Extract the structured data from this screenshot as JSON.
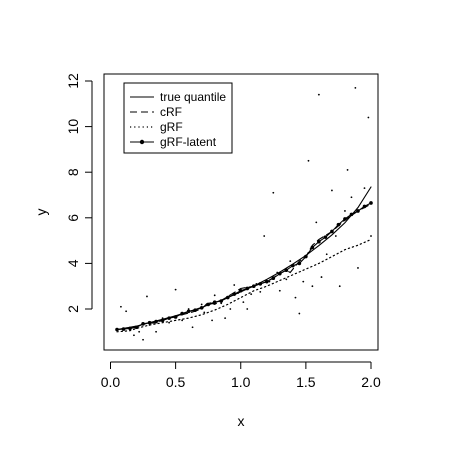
{
  "chart_data": {
    "type": "line",
    "title": "",
    "xlabel": "x",
    "ylabel": "y",
    "xlim": [
      0,
      2
    ],
    "ylim": [
      1,
      12
    ],
    "xticks": [
      "0.0",
      "0.5",
      "1.0",
      "1.5",
      "2.0"
    ],
    "yticks": [
      "2",
      "4",
      "6",
      "8",
      "10",
      "12"
    ],
    "grid": false,
    "legend_position": "top-left",
    "legend": [
      "true quantile",
      "cRF",
      "gRF",
      "gRF-latent"
    ],
    "series": [
      {
        "name": "true quantile",
        "line": "solid",
        "x": [
          0.05,
          0.1,
          0.2,
          0.3,
          0.4,
          0.5,
          0.6,
          0.7,
          0.8,
          0.9,
          1.0,
          1.1,
          1.2,
          1.3,
          1.4,
          1.5,
          1.6,
          1.7,
          1.8,
          1.9,
          2.0
        ],
        "values": [
          1.1,
          1.15,
          1.25,
          1.4,
          1.55,
          1.7,
          1.88,
          2.07,
          2.28,
          2.5,
          2.75,
          3.01,
          3.3,
          3.62,
          3.97,
          4.35,
          4.78,
          5.25,
          5.78,
          6.45,
          7.35
        ]
      },
      {
        "name": "cRF",
        "line": "dashed",
        "x": [
          0.05,
          0.12,
          0.2,
          0.25,
          0.35,
          0.45,
          0.55,
          0.62,
          0.7,
          0.75,
          0.8,
          0.9,
          1.0,
          1.1,
          1.2,
          1.3,
          1.35,
          1.38,
          1.45,
          1.5,
          1.55,
          1.6,
          1.7,
          1.8,
          1.9,
          2.0
        ],
        "values": [
          1.1,
          1.15,
          1.2,
          1.35,
          1.4,
          1.6,
          1.75,
          1.85,
          2.0,
          2.3,
          2.2,
          2.55,
          2.9,
          3.0,
          3.2,
          3.55,
          3.7,
          3.6,
          4.1,
          4.3,
          4.8,
          5.05,
          5.4,
          5.9,
          6.3,
          6.6
        ]
      },
      {
        "name": "gRF",
        "line": "dotted",
        "x": [
          0.05,
          0.15,
          0.2,
          0.3,
          0.4,
          0.5,
          0.6,
          0.7,
          0.8,
          0.9,
          1.0,
          1.1,
          1.2,
          1.3,
          1.4,
          1.5,
          1.6,
          1.7,
          1.8,
          1.9,
          2.0
        ],
        "values": [
          1.0,
          1.05,
          1.15,
          1.3,
          1.4,
          1.5,
          1.6,
          1.75,
          1.95,
          2.2,
          2.5,
          2.8,
          3.0,
          3.25,
          3.5,
          3.75,
          4.0,
          4.3,
          4.6,
          4.8,
          5.05
        ]
      },
      {
        "name": "gRF-latent",
        "line": "solid-points",
        "x": [
          0.05,
          0.1,
          0.15,
          0.2,
          0.25,
          0.3,
          0.35,
          0.4,
          0.45,
          0.5,
          0.55,
          0.6,
          0.65,
          0.7,
          0.75,
          0.8,
          0.85,
          0.9,
          0.95,
          1.0,
          1.05,
          1.1,
          1.15,
          1.2,
          1.25,
          1.3,
          1.35,
          1.4,
          1.45,
          1.5,
          1.55,
          1.6,
          1.65,
          1.7,
          1.75,
          1.8,
          1.85,
          1.9,
          1.95,
          2.0
        ],
        "values": [
          1.1,
          1.12,
          1.15,
          1.2,
          1.35,
          1.4,
          1.45,
          1.5,
          1.6,
          1.65,
          1.8,
          1.9,
          1.95,
          2.05,
          2.2,
          2.3,
          2.35,
          2.5,
          2.65,
          2.8,
          2.9,
          3.0,
          3.1,
          3.2,
          3.35,
          3.55,
          3.7,
          3.9,
          4.0,
          4.3,
          4.7,
          4.95,
          5.15,
          5.4,
          5.7,
          5.95,
          6.15,
          6.3,
          6.5,
          6.65
        ]
      }
    ],
    "scatter_points": [
      [
        0.08,
        2.1
      ],
      [
        0.12,
        1.9
      ],
      [
        0.18,
        0.85
      ],
      [
        0.22,
        1.0
      ],
      [
        0.25,
        0.65
      ],
      [
        0.28,
        2.55
      ],
      [
        0.3,
        1.3
      ],
      [
        0.35,
        1.0
      ],
      [
        0.4,
        1.6
      ],
      [
        0.45,
        1.4
      ],
      [
        0.5,
        2.85
      ],
      [
        0.55,
        1.5
      ],
      [
        0.6,
        2.0
      ],
      [
        0.63,
        1.2
      ],
      [
        0.7,
        2.2
      ],
      [
        0.72,
        1.85
      ],
      [
        0.78,
        1.5
      ],
      [
        0.8,
        2.6
      ],
      [
        0.85,
        2.25
      ],
      [
        0.88,
        1.6
      ],
      [
        0.92,
        2.0
      ],
      [
        0.95,
        3.05
      ],
      [
        0.98,
        2.7
      ],
      [
        1.02,
        2.3
      ],
      [
        1.05,
        2.0
      ],
      [
        1.08,
        2.65
      ],
      [
        1.12,
        3.1
      ],
      [
        1.15,
        2.75
      ],
      [
        1.18,
        5.2
      ],
      [
        1.22,
        3.2
      ],
      [
        1.25,
        7.1
      ],
      [
        1.28,
        3.6
      ],
      [
        1.3,
        2.8
      ],
      [
        1.35,
        3.3
      ],
      [
        1.38,
        4.1
      ],
      [
        1.42,
        2.5
      ],
      [
        1.45,
        1.8
      ],
      [
        1.48,
        3.2
      ],
      [
        1.52,
        8.5
      ],
      [
        1.55,
        3.0
      ],
      [
        1.58,
        5.8
      ],
      [
        1.6,
        11.4
      ],
      [
        1.62,
        3.4
      ],
      [
        1.66,
        4.4
      ],
      [
        1.7,
        7.2
      ],
      [
        1.73,
        5.2
      ],
      [
        1.76,
        3.0
      ],
      [
        1.8,
        6.3
      ],
      [
        1.82,
        8.1
      ],
      [
        1.85,
        6.9
      ],
      [
        1.88,
        11.7
      ],
      [
        1.9,
        3.8
      ],
      [
        1.95,
        7.3
      ],
      [
        1.98,
        10.4
      ],
      [
        2.0,
        5.2
      ]
    ]
  }
}
